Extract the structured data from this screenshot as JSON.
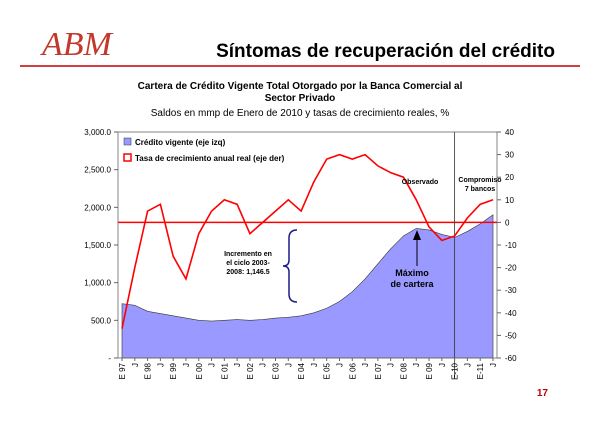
{
  "logo": "ABM",
  "header": {
    "title": "Síntomas de recuperación del crédito"
  },
  "page_number": "17",
  "chart_data": {
    "type": "combo",
    "title": [
      "Cartera de Crédito Vigente Total Otorgado por la Banca Comercial al",
      "Sector Privado"
    ],
    "subtitle": "Saldos en mmp de Enero de 2010 y tasas de crecimiento reales, %",
    "categories": [
      "E 97",
      "J",
      "E 98",
      "J",
      "E 99",
      "J",
      "E 00",
      "J",
      "E 01",
      "J",
      "E 02",
      "J",
      "E 03",
      "J",
      "E 04",
      "J",
      "E 05",
      "J",
      "E 06",
      "J",
      "E 07",
      "J",
      "E 08",
      "J",
      "E 09",
      "J",
      "E-10",
      "J",
      "E-11",
      "J"
    ],
    "series": [
      {
        "name": "Crédito vigente (eje izq)",
        "kind": "area",
        "color": "#9999ff",
        "axis": "y",
        "values": [
          720,
          700,
          620,
          590,
          560,
          530,
          500,
          490,
          500,
          510,
          500,
          510,
          530,
          540,
          560,
          600,
          660,
          750,
          880,
          1050,
          1250,
          1450,
          1620,
          1720,
          1700,
          1640,
          1600,
          1680,
          1780,
          1900
        ]
      },
      {
        "name": "Tasa de crecimiento anual real (eje der)",
        "kind": "line",
        "color": "#ff0000",
        "axis": "y2",
        "values": [
          -47,
          -20,
          5,
          8,
          -15,
          -25,
          -5,
          5,
          10,
          8,
          -5,
          0,
          5,
          10,
          5,
          18,
          28,
          30,
          28,
          30,
          25,
          22,
          20,
          10,
          -2,
          -8,
          -6,
          2,
          8,
          10
        ]
      }
    ],
    "ylim": [
      0,
      3000
    ],
    "yticks": [
      {
        "value": 0,
        "label": "-"
      },
      {
        "value": 500,
        "label": "500.0"
      },
      {
        "value": 1000,
        "label": "1,000.0"
      },
      {
        "value": 1500,
        "label": "1,500.0"
      },
      {
        "value": 2000,
        "label": "2,000.0"
      },
      {
        "value": 2500,
        "label": "2,500.0"
      },
      {
        "value": 3000,
        "label": "3,000.0"
      }
    ],
    "y2lim": [
      -60,
      40
    ],
    "y2ticks": [
      -60,
      -50,
      -40,
      -30,
      -20,
      -10,
      0,
      10,
      20,
      30,
      40
    ],
    "legend": "upper left",
    "annotations": [
      {
        "lines": [
          "Incremento en",
          "el ciclo 2003-",
          "2008: 1,146.5"
        ]
      },
      {
        "lines": [
          "Máximo",
          "de cartera"
        ]
      },
      {
        "lines": [
          "Observado"
        ]
      },
      {
        "lines": [
          "Compromiso",
          "7 bancos"
        ]
      }
    ]
  }
}
